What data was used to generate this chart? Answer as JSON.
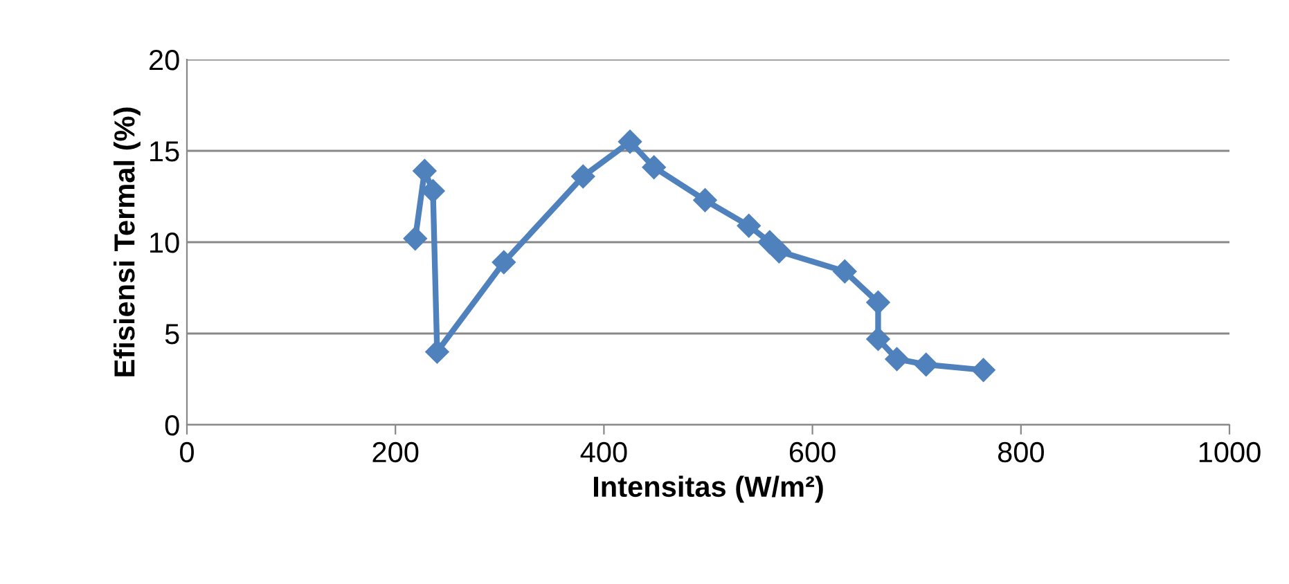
{
  "chart_data": {
    "type": "line",
    "xlabel": "Intensitas (W/m²)",
    "ylabel": "Efisiensi Termal (%)",
    "x": [
      219,
      228,
      236,
      240,
      304,
      380,
      425,
      448,
      497,
      539,
      559,
      568,
      631,
      663,
      663,
      681,
      709,
      764
    ],
    "series": [
      {
        "color": "#4f81bd",
        "values": [
          10.2,
          13.9,
          12.8,
          4.0,
          8.9,
          13.6,
          15.5,
          14.1,
          12.3,
          10.9,
          10.0,
          9.5,
          8.4,
          6.7,
          4.7,
          3.6,
          3.3,
          3.0
        ]
      }
    ],
    "xlim": [
      0,
      1000
    ],
    "xticks": [
      0,
      200,
      400,
      600,
      800,
      1000
    ],
    "ylim": [
      0,
      20
    ],
    "yticks": [
      0,
      5,
      10,
      15,
      20
    ],
    "grid": "y",
    "marker": "diamond",
    "line_style": "solid",
    "legend": false
  }
}
